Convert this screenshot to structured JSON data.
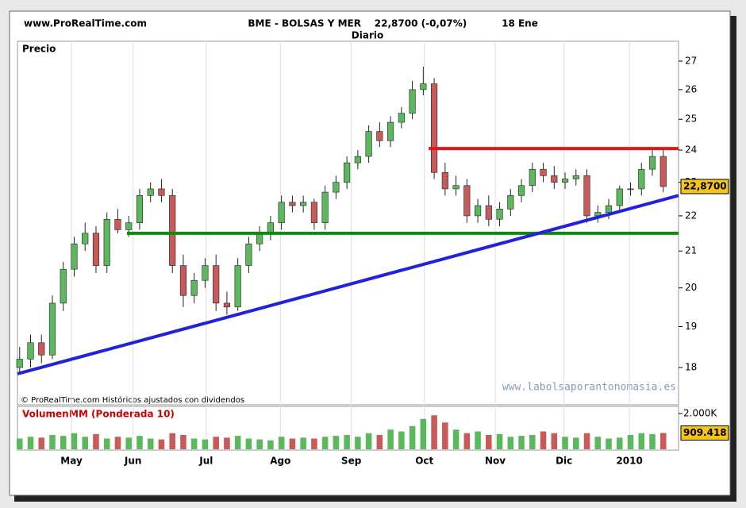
{
  "chart_data": {
    "type": "candlestick",
    "source": "www.ProRealTime.com",
    "title": "BME - BOLSAS Y MER",
    "quote": "22,8700 (-0,07%)",
    "date": "18 Ene",
    "subtitle": "Diario",
    "ylabel": "Precio",
    "footnote": "© ProRealTime.com Históricos ajustados con dividendos",
    "watermark": "www.labolsaporantonomasia.es",
    "log_scale": true,
    "ylim": [
      17.35,
      27.63
    ],
    "yticks": [
      18,
      19,
      20,
      21,
      22,
      23,
      24,
      25,
      26,
      27
    ],
    "xlim": [
      -0.2,
      60.4
    ],
    "xticks": [
      {
        "value": 4.75,
        "label": "May"
      },
      {
        "value": 10.4,
        "label": "Jun"
      },
      {
        "value": 17.1,
        "label": "Jul"
      },
      {
        "value": 23.9,
        "label": "Ago"
      },
      {
        "value": 30.4,
        "label": "Sep"
      },
      {
        "value": 37.1,
        "label": "Oct"
      },
      {
        "value": 43.6,
        "label": "Nov"
      },
      {
        "value": 49.9,
        "label": "Dic"
      },
      {
        "value": 55.9,
        "label": "2010"
      }
    ],
    "up_color": "#5cb85c",
    "down_color": "#c85a5a",
    "open": [
      18.0,
      18.2,
      18.6,
      18.3,
      19.6,
      20.5,
      21.2,
      21.5,
      20.6,
      21.9,
      21.6,
      21.8,
      22.6,
      22.8,
      22.6,
      20.6,
      19.8,
      20.2,
      20.6,
      19.6,
      19.5,
      20.6,
      21.2,
      21.5,
      21.8,
      22.4,
      22.3,
      22.4,
      21.8,
      22.7,
      23.0,
      23.6,
      23.8,
      24.6,
      24.3,
      24.9,
      25.2,
      26.0,
      26.2,
      23.3,
      22.8,
      22.9,
      22.0,
      22.3,
      21.9,
      22.2,
      22.6,
      22.9,
      23.4,
      23.2,
      23.0,
      23.1,
      23.2,
      22.0,
      22.1,
      22.3,
      22.8,
      22.8,
      23.4,
      23.8
    ],
    "high": [
      18.5,
      18.8,
      18.8,
      19.8,
      20.7,
      21.4,
      21.8,
      21.7,
      22.1,
      22.2,
      22.0,
      22.8,
      23.0,
      23.1,
      22.8,
      20.9,
      20.4,
      20.8,
      20.9,
      19.9,
      20.8,
      21.4,
      21.7,
      22.0,
      22.6,
      22.6,
      22.6,
      22.5,
      22.9,
      23.2,
      23.8,
      24.0,
      24.8,
      24.9,
      25.1,
      25.4,
      26.3,
      26.8,
      26.4,
      23.6,
      23.2,
      23.1,
      22.5,
      22.6,
      22.4,
      22.8,
      23.1,
      23.6,
      23.6,
      23.5,
      23.3,
      23.4,
      23.4,
      22.3,
      22.5,
      22.9,
      23.0,
      23.6,
      24.0,
      24.0
    ],
    "low": [
      17.9,
      18.0,
      18.1,
      18.2,
      19.4,
      20.3,
      21.0,
      20.4,
      20.4,
      21.5,
      21.4,
      21.6,
      22.4,
      22.4,
      20.4,
      19.5,
      19.6,
      20.0,
      19.4,
      19.3,
      19.4,
      20.4,
      21.0,
      21.3,
      21.6,
      22.1,
      22.1,
      21.6,
      21.6,
      22.5,
      22.8,
      23.4,
      23.6,
      24.1,
      24.1,
      24.7,
      25.0,
      25.8,
      23.1,
      22.6,
      22.6,
      21.8,
      21.8,
      21.7,
      21.7,
      22.0,
      22.4,
      22.7,
      23.0,
      22.8,
      22.8,
      22.9,
      21.8,
      21.8,
      21.9,
      22.1,
      22.6,
      22.6,
      23.2,
      22.7
    ],
    "close": [
      18.2,
      18.6,
      18.3,
      19.6,
      20.5,
      21.2,
      21.5,
      20.6,
      21.9,
      21.6,
      21.8,
      22.6,
      22.8,
      22.6,
      20.6,
      19.8,
      20.2,
      20.6,
      19.6,
      19.5,
      20.6,
      21.2,
      21.5,
      21.8,
      22.4,
      22.3,
      22.4,
      21.8,
      22.7,
      23.0,
      23.6,
      23.8,
      24.6,
      24.3,
      24.9,
      25.2,
      26.0,
      26.2,
      23.3,
      22.8,
      22.9,
      22.0,
      22.3,
      21.9,
      22.2,
      22.6,
      22.9,
      23.4,
      23.2,
      23.0,
      23.1,
      23.2,
      22.0,
      22.1,
      22.3,
      22.8,
      22.8,
      23.4,
      23.8,
      22.87
    ],
    "last_label": {
      "value": 22.87,
      "label": "22,8700"
    },
    "lines": [
      {
        "color": "#ee1111",
        "x": [
          37.5,
          60.4
        ],
        "y": [
          24.05,
          24.05
        ]
      },
      {
        "color": "#118811",
        "x": [
          9.84,
          60.4
        ],
        "y": [
          21.5,
          21.5
        ]
      },
      {
        "color": "#2222dd",
        "x": [
          -0.2,
          60.4
        ],
        "y": [
          17.85,
          22.6
        ]
      }
    ],
    "volume": {
      "title": "Volumen",
      "indicator": "MM (Ponderada 10)",
      "ylim": [
        0,
        2400
      ],
      "yticks": [
        {
          "value": 2000,
          "label": "2.000K"
        }
      ],
      "values": [
        600,
        700,
        650,
        800,
        750,
        900,
        700,
        850,
        600,
        700,
        650,
        750,
        600,
        550,
        900,
        800,
        600,
        550,
        700,
        650,
        750,
        600,
        550,
        500,
        700,
        600,
        650,
        600,
        700,
        750,
        800,
        700,
        900,
        800,
        1100,
        1000,
        1300,
        1700,
        1900,
        1500,
        1100,
        900,
        1000,
        800,
        850,
        700,
        750,
        800,
        1000,
        900,
        700,
        650,
        900,
        700,
        600,
        650,
        800,
        900,
        850,
        909.418
      ],
      "last_label": {
        "value": 909.418,
        "label": "909.418"
      }
    }
  }
}
